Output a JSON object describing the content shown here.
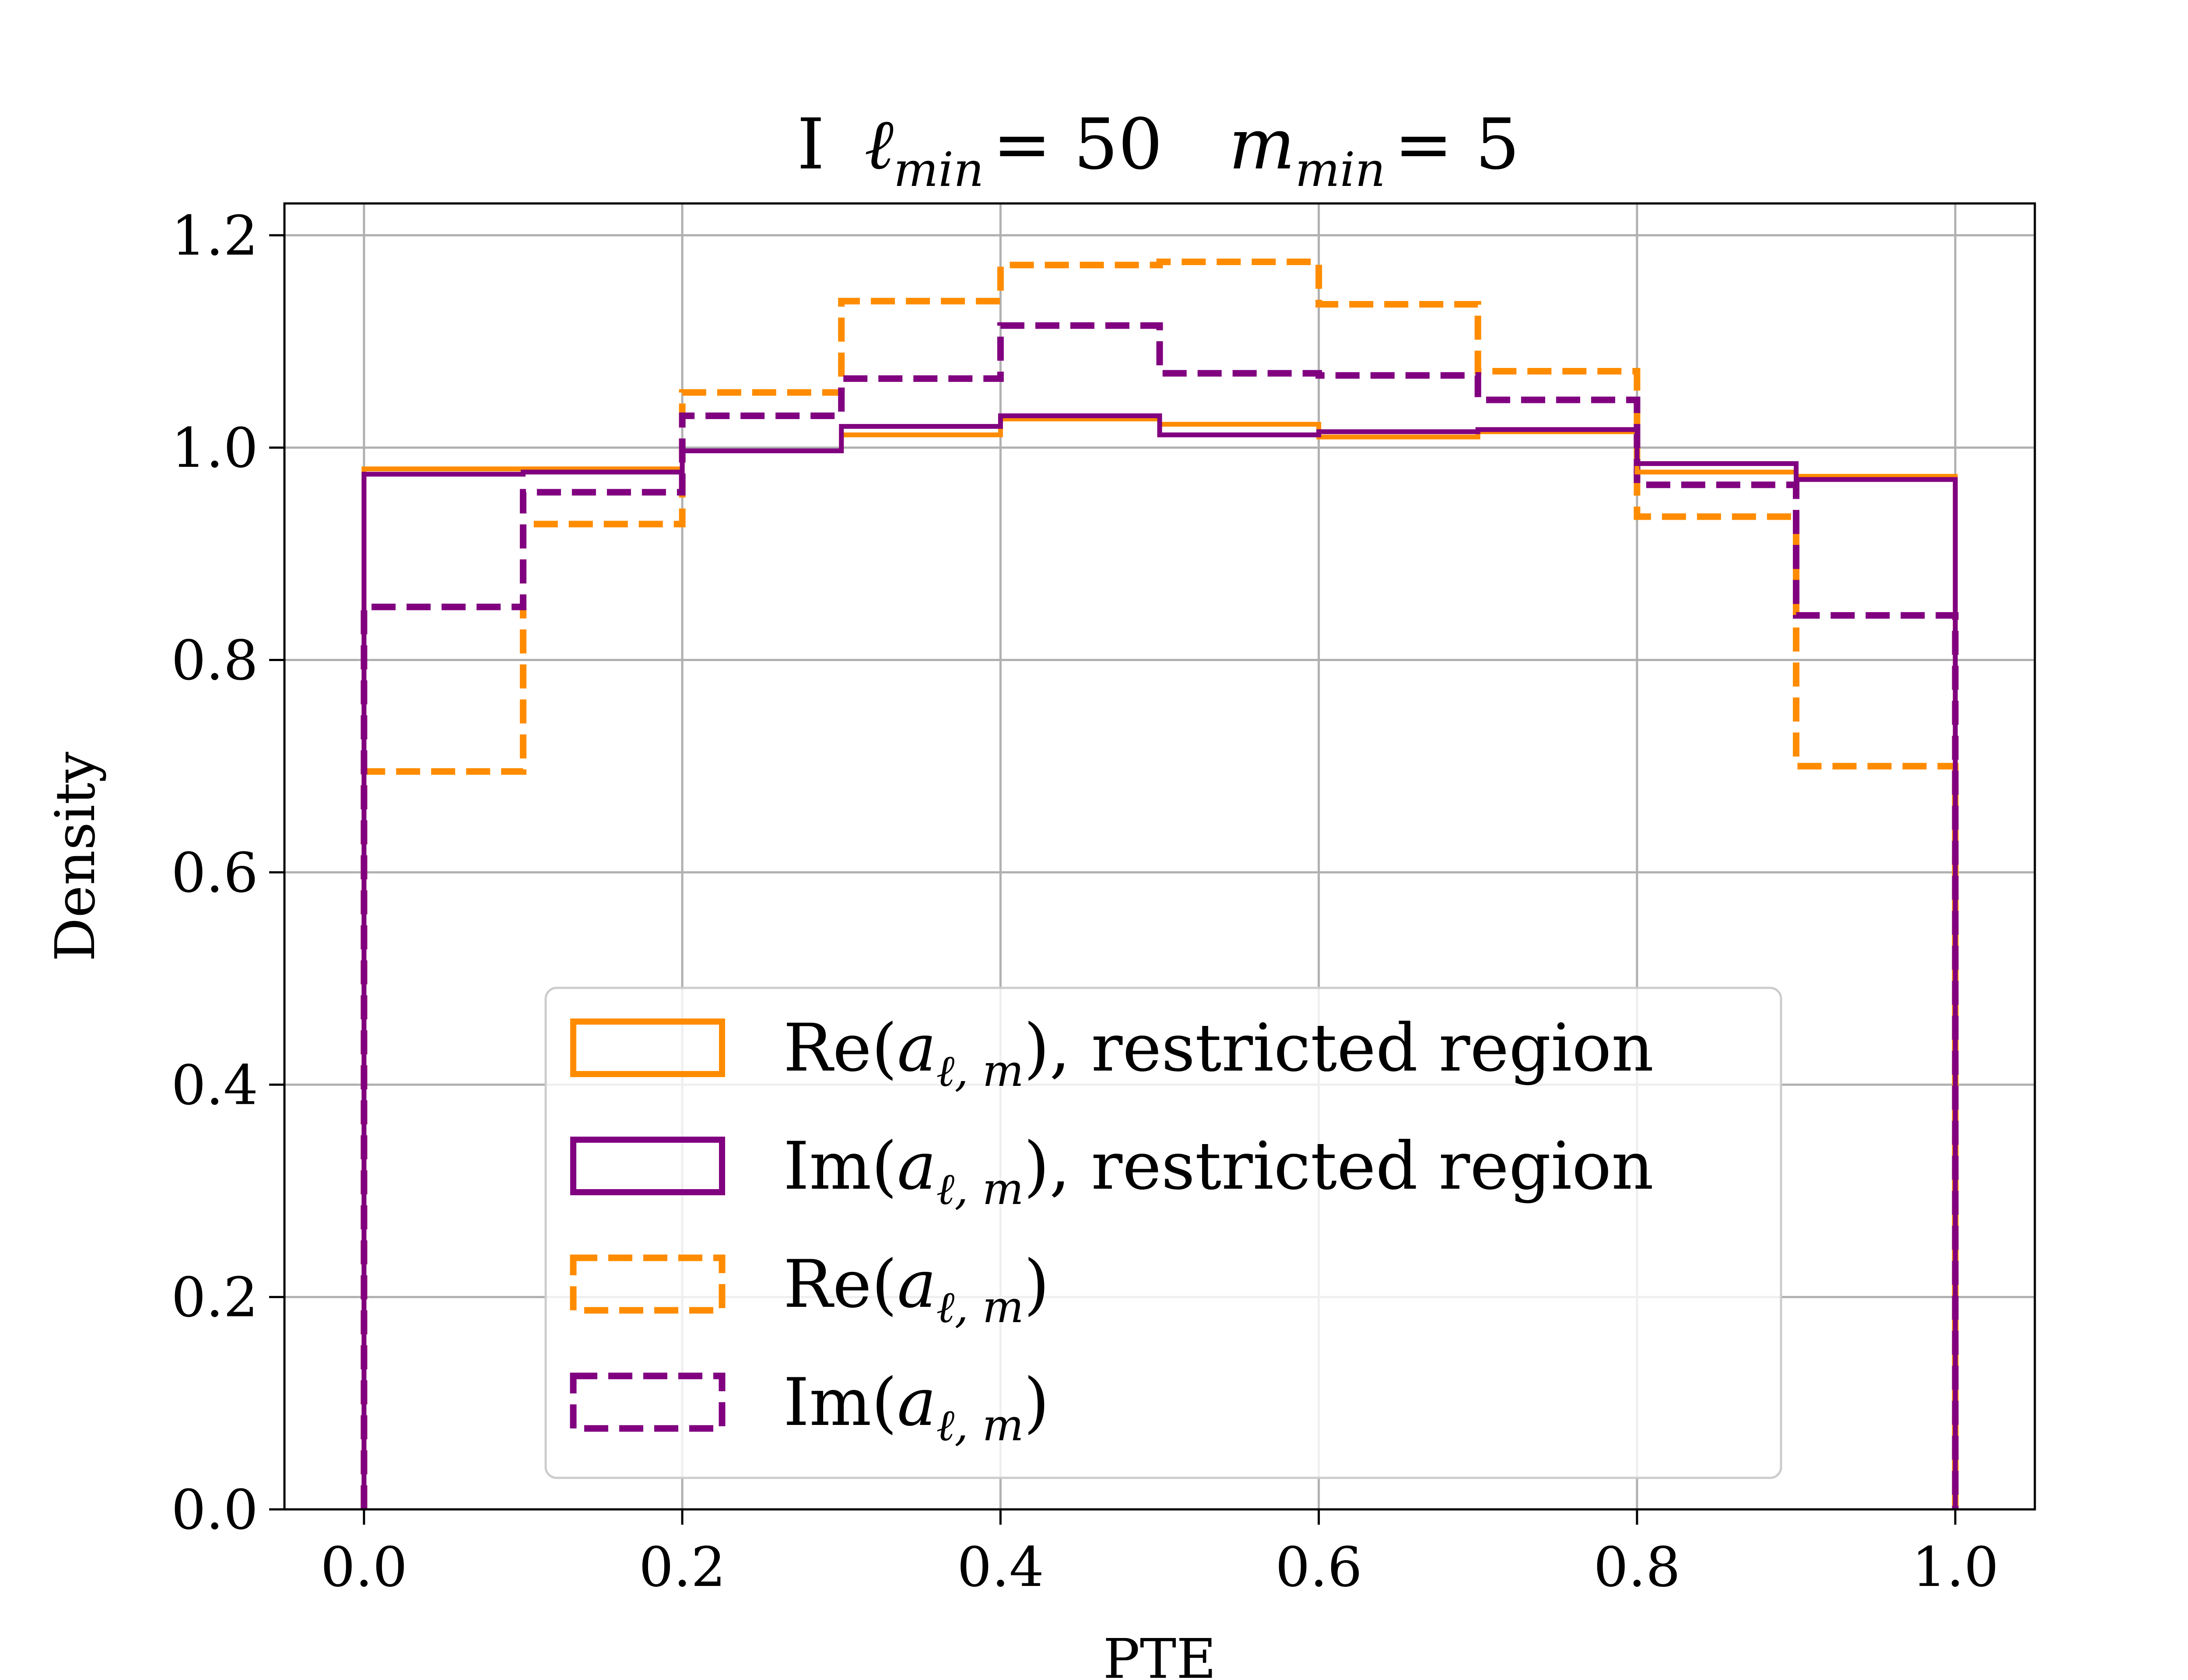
{
  "chart_data": {
    "type": "histogram",
    "title": {
      "prefix": "I",
      "ell": "ℓ",
      "ell_sub": "min",
      "ell_value": "= 50",
      "m": "m",
      "m_sub": "min",
      "m_value": "= 5"
    },
    "xlabel": "PTE",
    "ylabel": "Density",
    "xlim": [
      -0.05,
      1.05
    ],
    "ylim": [
      0.0,
      1.23
    ],
    "xticks": [
      "0.0",
      "0.2",
      "0.4",
      "0.6",
      "0.8",
      "1.0"
    ],
    "yticks": [
      "0.0",
      "0.2",
      "0.4",
      "0.6",
      "0.8",
      "1.0",
      "1.2"
    ],
    "grid": true,
    "legend_position": "lower center",
    "bin_edges": [
      0.0,
      0.1,
      0.2,
      0.3,
      0.4,
      0.5,
      0.6,
      0.7,
      0.8,
      0.9,
      1.0
    ],
    "series": [
      {
        "label": {
          "prefix": "Re(",
          "base": "a",
          "sub": "ℓ, m",
          "suffix": "), restricted region"
        },
        "color": "#ff8c00",
        "linestyle": "solid",
        "values": [
          0.98,
          0.98,
          0.997,
          1.012,
          1.027,
          1.022,
          1.01,
          1.015,
          0.977,
          0.973
        ]
      },
      {
        "label": {
          "prefix": "Im(",
          "base": "a",
          "sub": "ℓ, m",
          "suffix": "), restricted region"
        },
        "color": "#800080",
        "linestyle": "solid",
        "values": [
          0.975,
          0.977,
          0.997,
          1.02,
          1.03,
          1.012,
          1.015,
          1.017,
          0.985,
          0.97
        ]
      },
      {
        "label": {
          "prefix": "Re(",
          "base": "a",
          "sub": "ℓ, m",
          "suffix": ")"
        },
        "color": "#ff8c00",
        "linestyle": "dashed",
        "values": [
          0.695,
          0.928,
          1.052,
          1.138,
          1.172,
          1.175,
          1.135,
          1.072,
          0.935,
          0.7
        ]
      },
      {
        "label": {
          "prefix": "Im(",
          "base": "a",
          "sub": "ℓ, m",
          "suffix": ")"
        },
        "color": "#800080",
        "linestyle": "dashed",
        "values": [
          0.85,
          0.958,
          1.03,
          1.065,
          1.115,
          1.07,
          1.068,
          1.045,
          0.965,
          0.842
        ]
      }
    ]
  }
}
